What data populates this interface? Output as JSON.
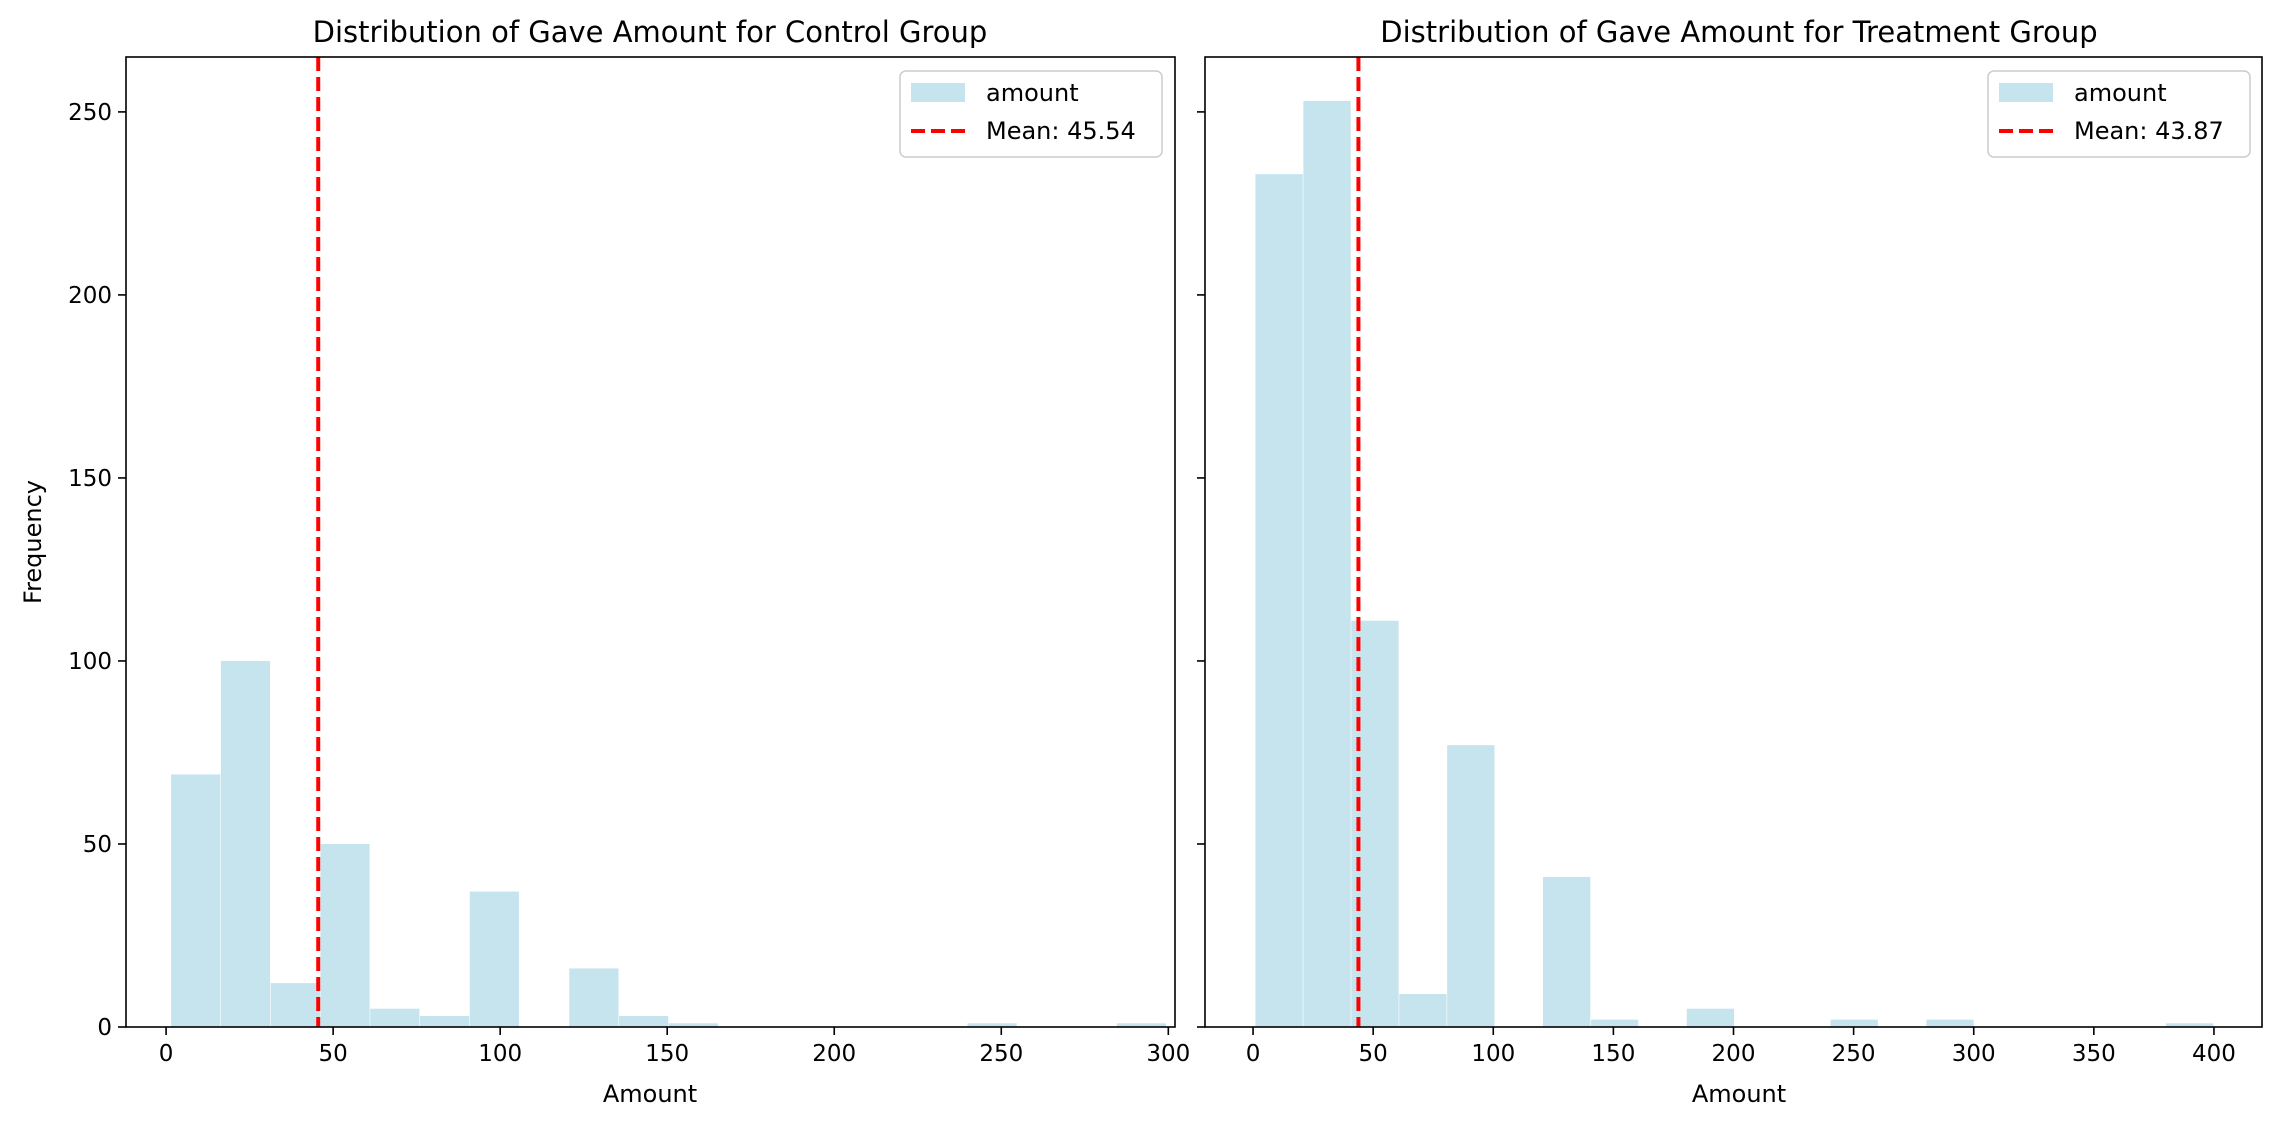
{
  "chart_data": [
    {
      "type": "bar",
      "title": "Distribution of Gave Amount for Control Group",
      "xlabel": "Amount",
      "ylabel": "Frequency",
      "xlim": [
        -12,
        302
      ],
      "ylim": [
        0,
        265
      ],
      "xticks": [
        0,
        50,
        100,
        150,
        200,
        250,
        300
      ],
      "yticks": [
        0,
        50,
        100,
        150,
        200,
        250
      ],
      "grid": false,
      "legend_position": "top-right",
      "bar_color": "#add8e6",
      "bin_edges": [
        1.5,
        16.4,
        31.3,
        46.2,
        61.1,
        76.0,
        90.9,
        105.8,
        120.7,
        135.6,
        150.5,
        165.4,
        180.3,
        195.2,
        210.1,
        225.0,
        239.9,
        254.8,
        269.7,
        284.6,
        299.5
      ],
      "counts": [
        69,
        100,
        12,
        50,
        5,
        3,
        37,
        0,
        16,
        3,
        1,
        0,
        0,
        0,
        0,
        0,
        1,
        0,
        0,
        1
      ],
      "series_label": "amount",
      "mean": {
        "value": 45.54,
        "label": "Mean: 45.54",
        "color": "#ff0000"
      }
    },
    {
      "type": "bar",
      "title": "Distribution of Gave Amount for Treatment Group",
      "xlabel": "Amount",
      "ylabel": "",
      "xlim": [
        -20,
        420
      ],
      "ylim": [
        0,
        265
      ],
      "xticks": [
        0,
        50,
        100,
        150,
        200,
        250,
        300,
        350,
        400
      ],
      "yticks": [
        0,
        50,
        100,
        150,
        200,
        250
      ],
      "show_ytick_labels": false,
      "grid": false,
      "legend_position": "top-right",
      "bar_color": "#add8e6",
      "bin_edges": [
        1,
        20.95,
        40.9,
        60.85,
        80.8,
        100.75,
        120.7,
        140.65,
        160.6,
        180.55,
        200.5,
        220.45,
        240.4,
        260.35,
        280.3,
        300.25,
        320.2,
        340.15,
        360.1,
        380.05,
        400
      ],
      "counts": [
        233,
        253,
        111,
        9,
        77,
        0,
        41,
        2,
        0,
        5,
        0,
        0,
        2,
        0,
        2,
        0,
        0,
        0,
        0,
        1
      ],
      "series_label": "amount",
      "mean": {
        "value": 43.87,
        "label": "Mean: 43.87",
        "color": "#ff0000"
      }
    }
  ]
}
